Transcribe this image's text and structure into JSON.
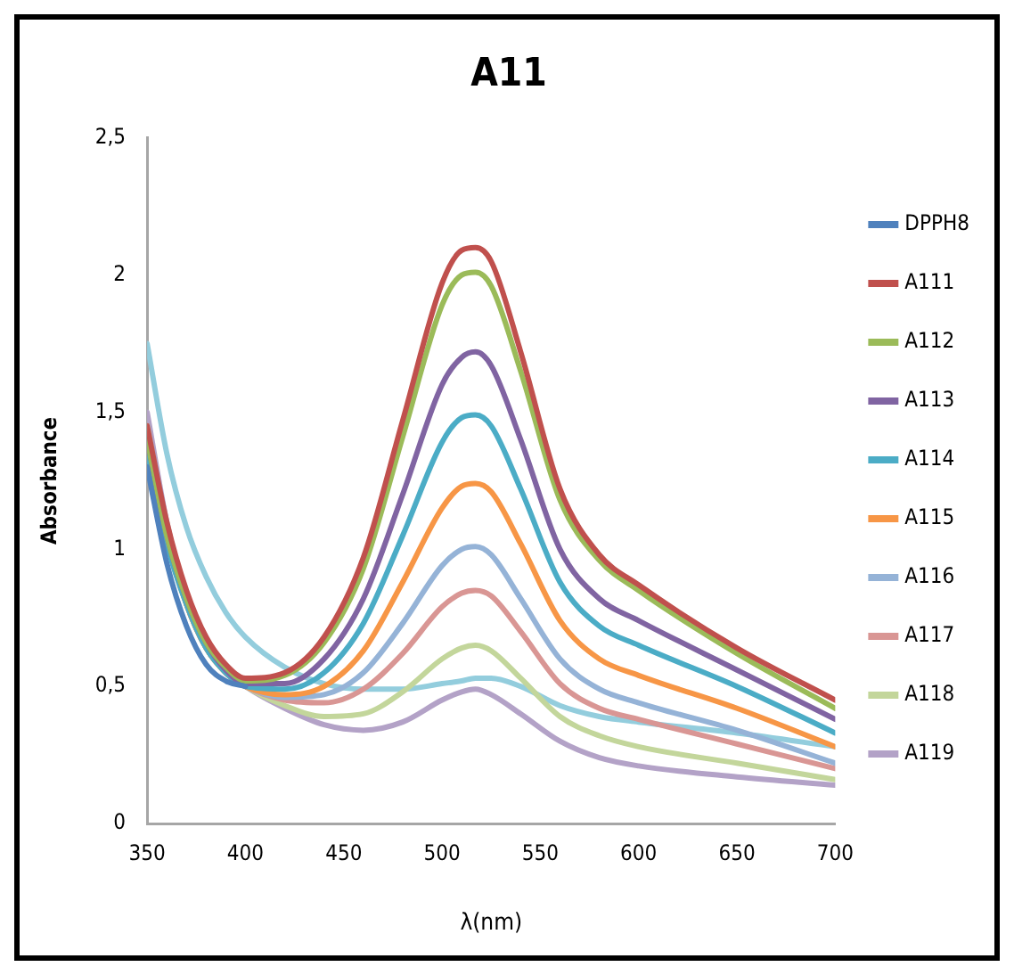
{
  "chart_data": {
    "type": "line",
    "title": "A11",
    "xlabel": "λ(nm)",
    "ylabel": "Absorbance",
    "x": [
      350,
      360,
      370,
      380,
      390,
      400,
      420,
      440,
      460,
      480,
      500,
      510,
      517,
      525,
      540,
      560,
      580,
      600,
      650,
      700
    ],
    "series": [
      {
        "name": "DPPH8",
        "color": "#4f81bd",
        "values": [
          1.3,
          0.95,
          0.72,
          0.58,
          0.52,
          0.5,
          null,
          null,
          null,
          null,
          null,
          null,
          null,
          null,
          null,
          null,
          null,
          null,
          null,
          null
        ]
      },
      {
        "name": "A111",
        "color": "#c0504d",
        "values": [
          1.45,
          1.1,
          0.85,
          0.68,
          0.58,
          0.53,
          0.55,
          0.68,
          0.97,
          1.47,
          1.97,
          2.09,
          2.1,
          2.05,
          1.72,
          1.22,
          0.98,
          0.87,
          0.64,
          0.45
        ]
      },
      {
        "name": "A112",
        "color": "#9bbb59",
        "values": [
          1.4,
          1.05,
          0.82,
          0.66,
          0.57,
          0.52,
          0.54,
          0.66,
          0.93,
          1.41,
          1.89,
          2.0,
          2.01,
          1.96,
          1.65,
          1.18,
          0.96,
          0.85,
          0.62,
          0.42
        ]
      },
      {
        "name": "A113",
        "color": "#8064a2",
        "values": [
          1.4,
          1.05,
          0.82,
          0.66,
          0.56,
          0.51,
          0.51,
          0.6,
          0.82,
          1.2,
          1.6,
          1.7,
          1.72,
          1.67,
          1.4,
          1.0,
          0.82,
          0.74,
          0.56,
          0.38
        ]
      },
      {
        "name": "A114",
        "color": "#4bacc6",
        "values": [
          1.35,
          1.02,
          0.8,
          0.64,
          0.55,
          0.5,
          0.49,
          0.55,
          0.73,
          1.05,
          1.39,
          1.48,
          1.49,
          1.45,
          1.22,
          0.88,
          0.72,
          0.65,
          0.5,
          0.33
        ]
      },
      {
        "name": "A115",
        "color": "#f79646",
        "values": [
          1.38,
          1.03,
          0.8,
          0.64,
          0.55,
          0.5,
          0.47,
          0.5,
          0.63,
          0.88,
          1.15,
          1.23,
          1.24,
          1.21,
          1.02,
          0.74,
          0.6,
          0.54,
          0.42,
          0.28
        ]
      },
      {
        "name": "A116",
        "color": "#95b3d7",
        "values": [
          1.4,
          1.05,
          0.8,
          0.64,
          0.55,
          0.5,
          0.46,
          0.47,
          0.55,
          0.73,
          0.94,
          1.0,
          1.01,
          0.98,
          0.82,
          0.6,
          0.49,
          0.44,
          0.34,
          0.22
        ]
      },
      {
        "name": "A117",
        "color": "#d99694",
        "values": [
          1.42,
          1.06,
          0.8,
          0.64,
          0.55,
          0.5,
          0.45,
          0.44,
          0.49,
          0.62,
          0.79,
          0.84,
          0.85,
          0.83,
          0.7,
          0.51,
          0.42,
          0.38,
          0.29,
          0.2
        ]
      },
      {
        "name": "A118",
        "color": "#c3d69b",
        "values": [
          1.45,
          1.08,
          0.82,
          0.65,
          0.55,
          0.5,
          0.43,
          0.39,
          0.4,
          0.48,
          0.6,
          0.64,
          0.65,
          0.63,
          0.53,
          0.39,
          0.32,
          0.28,
          0.22,
          0.16
        ]
      },
      {
        "name": "A119",
        "color": "#b3a2c7",
        "values": [
          1.5,
          1.1,
          0.83,
          0.66,
          0.56,
          0.5,
          0.42,
          0.36,
          0.34,
          0.37,
          0.45,
          0.48,
          0.49,
          0.47,
          0.4,
          0.3,
          0.24,
          0.21,
          0.17,
          0.14
        ]
      },
      {
        "color": "#93cddd",
        "values": [
          1.75,
          1.35,
          1.08,
          0.9,
          0.77,
          0.68,
          0.57,
          0.51,
          0.49,
          0.49,
          0.51,
          0.52,
          0.53,
          0.53,
          0.5,
          0.43,
          0.39,
          0.37,
          0.33,
          0.28
        ]
      }
    ],
    "xlim": [
      350,
      700
    ],
    "xticks": [
      350,
      400,
      450,
      500,
      550,
      600,
      650,
      700
    ],
    "ylim": [
      0,
      2.5
    ],
    "yticks": [
      0,
      {
        "value": 0.5,
        "label": "0,5"
      },
      1,
      {
        "value": 1.5,
        "label": "1,5"
      },
      2,
      {
        "value": 2.5,
        "label": "2,5"
      }
    ],
    "grid": false,
    "legend": "right",
    "marker": "none",
    "line_style": "solid"
  }
}
